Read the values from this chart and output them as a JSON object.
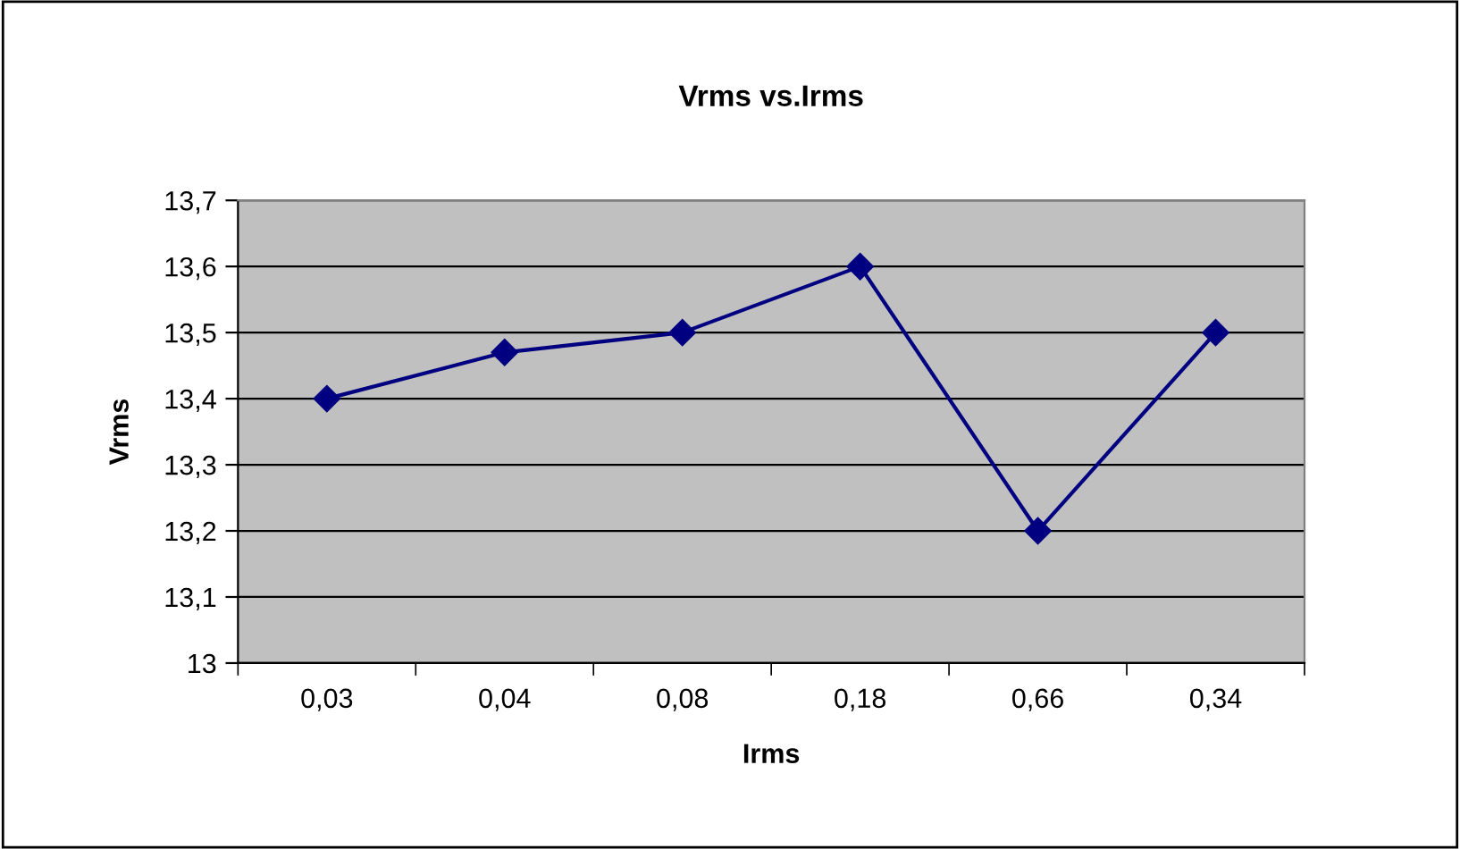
{
  "chart_data": {
    "type": "line",
    "title": "Vrms vs.Irms",
    "xlabel": "Irms",
    "ylabel": "Vrms",
    "categories": [
      "0,03",
      "0,04",
      "0,08",
      "0,18",
      "0,66",
      "0,34"
    ],
    "series": [
      {
        "color": "#000080",
        "values": [
          13.4,
          13.47,
          13.5,
          13.6,
          13.2,
          13.5
        ]
      }
    ],
    "ylim": [
      13,
      13.7
    ],
    "yticks": [
      13,
      {
        "value": 13.1,
        "label": "13,1"
      },
      {
        "value": 13.2,
        "label": "13,2"
      },
      {
        "value": 13.3,
        "label": "13,3"
      },
      {
        "value": 13.4,
        "label": "13,4"
      },
      {
        "value": 13.5,
        "label": "13,5"
      },
      {
        "value": 13.6,
        "label": "13,6"
      },
      {
        "value": 13.7,
        "label": "13,7"
      }
    ],
    "grid": "y",
    "marker": "diamond",
    "line_style": "solid"
  }
}
